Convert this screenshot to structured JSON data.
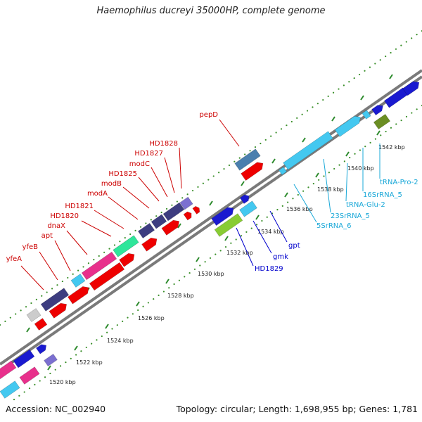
{
  "title": "Haemophilus ducreyi 35000HP, complete genome",
  "footer": {
    "accession": "Accession: NC_002940",
    "stats": "Topology: circular; Length: 1,698,955 bp; Genes: 1,781"
  },
  "colors": {
    "backbone": "#8a8a8a",
    "dots": "#3a8f2a",
    "label_red": "#cc0000",
    "label_blue": "#0000cc",
    "label_cyan": "#1aa8d8",
    "cds_red": "#ee0000",
    "cds_blue": "#1a1ad0",
    "cds_navy": "#3d3d80",
    "rrna_cyan": "#44c8f0",
    "pink": "#e8308c",
    "teal": "#2ee69a",
    "lime": "#88cc33"
  },
  "ticks": [
    "1520 kbp",
    "1522 kbp",
    "1524 kbp",
    "1526 kbp",
    "1528 kbp",
    "1530 kbp",
    "1532 kbp",
    "1534 kbp",
    "1536 kbp",
    "1538 kbp",
    "1540 kbp",
    "1542 kbp"
  ],
  "labels": {
    "red": [
      "yfeA",
      "yfeB",
      "apt",
      "dnaX",
      "HD1820",
      "HD1821",
      "modA",
      "modB",
      "HD1825",
      "modC",
      "HD1827",
      "HD1828",
      "pepD"
    ],
    "blue": [
      "HD1829",
      "gmk",
      "gpt"
    ],
    "cyan": [
      "5SrRNA_6",
      "23SrRNA_5",
      "tRNA-Glu-2",
      "16SrRNA_5",
      "tRNA-Pro-2"
    ]
  }
}
